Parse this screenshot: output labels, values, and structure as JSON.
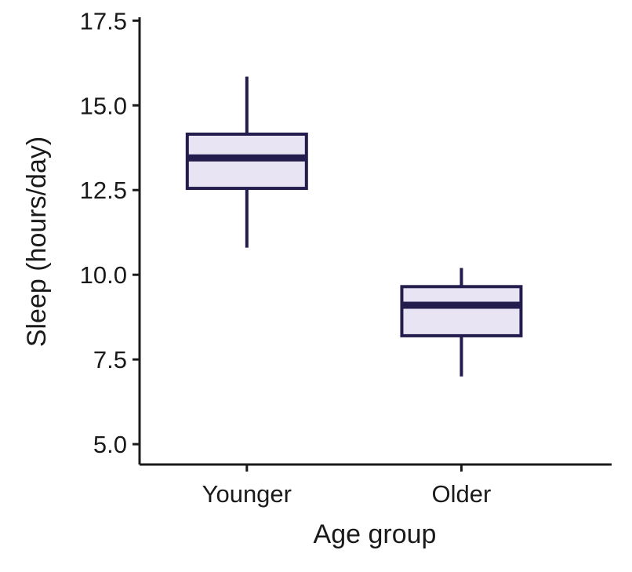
{
  "chart_data": {
    "type": "box",
    "title": "",
    "xlabel": "Age group",
    "ylabel": "Sleep (hours/day)",
    "ylim": [
      4.4,
      17.6
    ],
    "yticks": [
      5.0,
      7.5,
      10.0,
      12.5,
      15.0,
      17.5
    ],
    "ytick_labels": [
      "5.0",
      "7.5",
      "10.0",
      "12.5",
      "15.0",
      "17.5"
    ],
    "categories": [
      "Younger",
      "Older"
    ],
    "boxes": [
      {
        "category": "Younger",
        "whisker_low": 10.8,
        "q1": 12.55,
        "median": 13.45,
        "q3": 14.15,
        "whisker_high": 15.85
      },
      {
        "category": "Older",
        "whisker_low": 7.0,
        "q1": 8.2,
        "median": 9.1,
        "q3": 9.65,
        "whisker_high": 10.2
      }
    ],
    "grid": false,
    "legend": "none",
    "colors": {
      "box_fill": "#e8e4f3",
      "box_edge": "#231d4e",
      "axis": "#1a1a1a"
    }
  }
}
